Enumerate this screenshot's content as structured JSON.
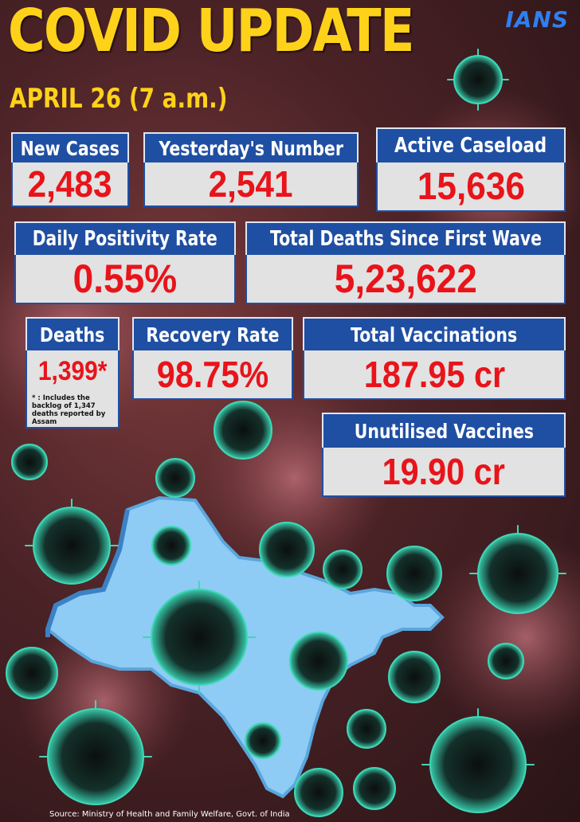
{
  "header": {
    "title": "COVID UPDATE",
    "date": "APRIL 26 (7 a.m.)",
    "logo": "IANS"
  },
  "stats": {
    "new_cases": {
      "label": "New Cases",
      "value": "2,483"
    },
    "yesterdays_number": {
      "label": "Yesterday's Number",
      "value": "2,541"
    },
    "active_caseload": {
      "label": "Active Caseload",
      "value": "15,636"
    },
    "daily_positivity_rate": {
      "label": "Daily Positivity Rate",
      "value": "0.55%"
    },
    "total_deaths": {
      "label": "Total Deaths Since First Wave",
      "value": "5,23,622"
    },
    "deaths": {
      "label": "Deaths",
      "value": "1,399*",
      "note": "* : Includes the backlog of 1,347 deaths reported by Assam"
    },
    "recovery_rate": {
      "label": "Recovery Rate",
      "value": "98.75%"
    },
    "total_vaccinations": {
      "label": "Total Vaccinations",
      "value": "187.95 cr"
    },
    "unutilised_vaccines": {
      "label": "Unutilised Vaccines",
      "value": "19.90 cr"
    }
  },
  "footer": {
    "source": "Source: Ministry of Health and Family Welfare, Govt. of India"
  },
  "colors": {
    "title": "#ffd21a",
    "label_bg": "#1f4fa3",
    "value_bg": "#e2e2e2",
    "value_text": "#e8141a",
    "logo": "#2f7ff0",
    "map": "#8ecbf5"
  },
  "icons": {
    "virus": "coronavirus-particle-icon",
    "map": "india-map-icon"
  }
}
